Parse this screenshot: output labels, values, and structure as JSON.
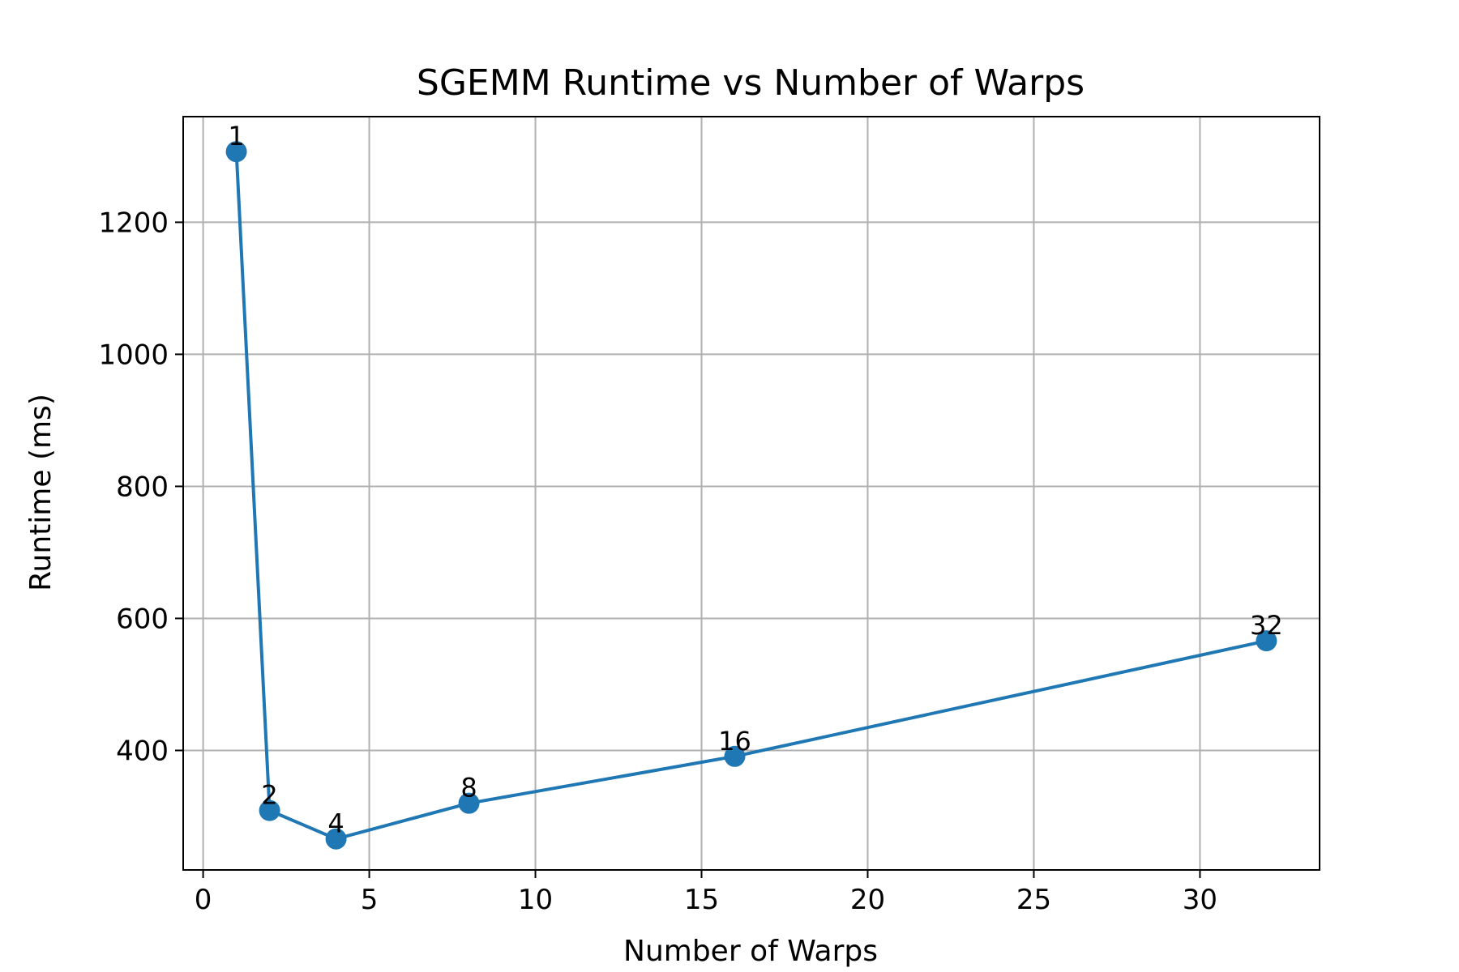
{
  "chart_data": {
    "type": "line",
    "title": "SGEMM Runtime vs Number of Warps",
    "xlabel": "Number of Warps",
    "ylabel": "Runtime (ms)",
    "xlim": [
      -0.6,
      33.6
    ],
    "ylim": [
      219,
      1360
    ],
    "xticks": [
      0,
      5,
      10,
      15,
      20,
      25,
      30
    ],
    "yticks": [
      400,
      600,
      800,
      1000,
      1200
    ],
    "grid": true,
    "color": "#1f77b4",
    "series": [
      {
        "x": [
          1,
          2,
          4,
          8,
          16,
          32
        ],
        "y": [
          1307,
          309,
          266,
          320,
          391,
          566
        ],
        "point_labels": [
          "1",
          "2",
          "4",
          "8",
          "16",
          "32"
        ]
      }
    ]
  }
}
